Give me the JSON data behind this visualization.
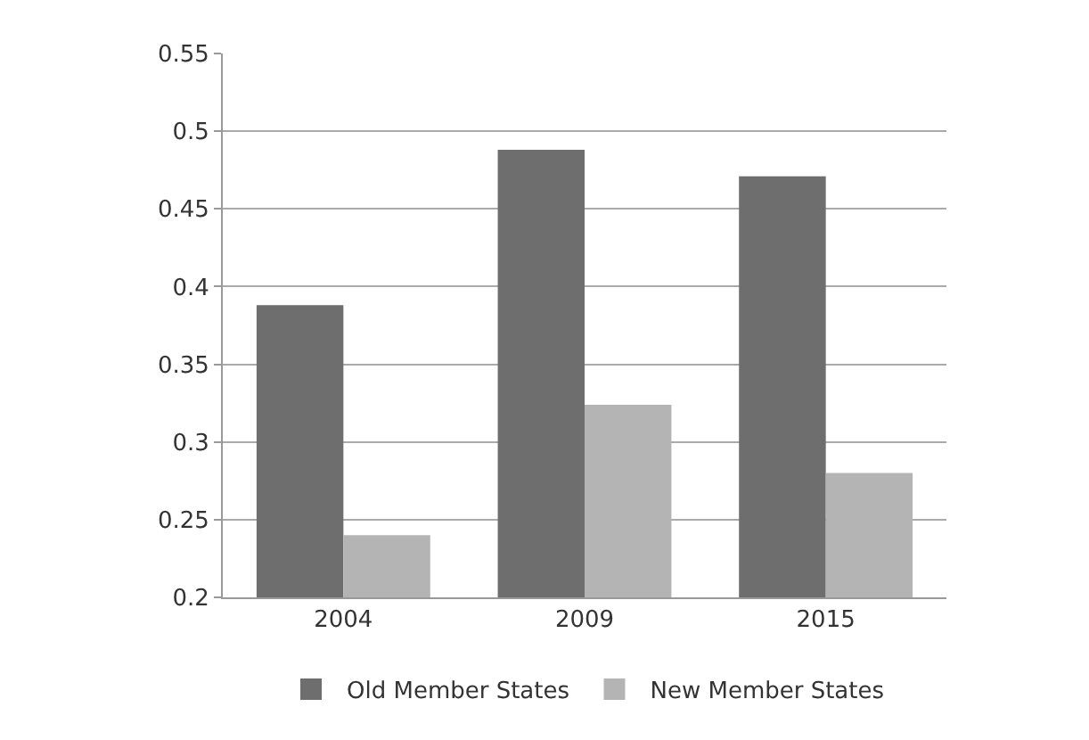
{
  "chart_data": {
    "type": "bar",
    "categories": [
      "2004",
      "2009",
      "2015"
    ],
    "series": [
      {
        "name": "Old Member States",
        "color": "#6e6e6e",
        "values": [
          0.388,
          0.488,
          0.471
        ]
      },
      {
        "name": "New Member States",
        "color": "#b4b4b4",
        "values": [
          0.24,
          0.324,
          0.28
        ]
      }
    ],
    "ylim": [
      0.2,
      0.55
    ],
    "yticks": [
      0.2,
      0.25,
      0.3,
      0.35,
      0.4,
      0.45,
      0.5,
      0.55
    ],
    "grid": "y",
    "legend": "bottom"
  }
}
